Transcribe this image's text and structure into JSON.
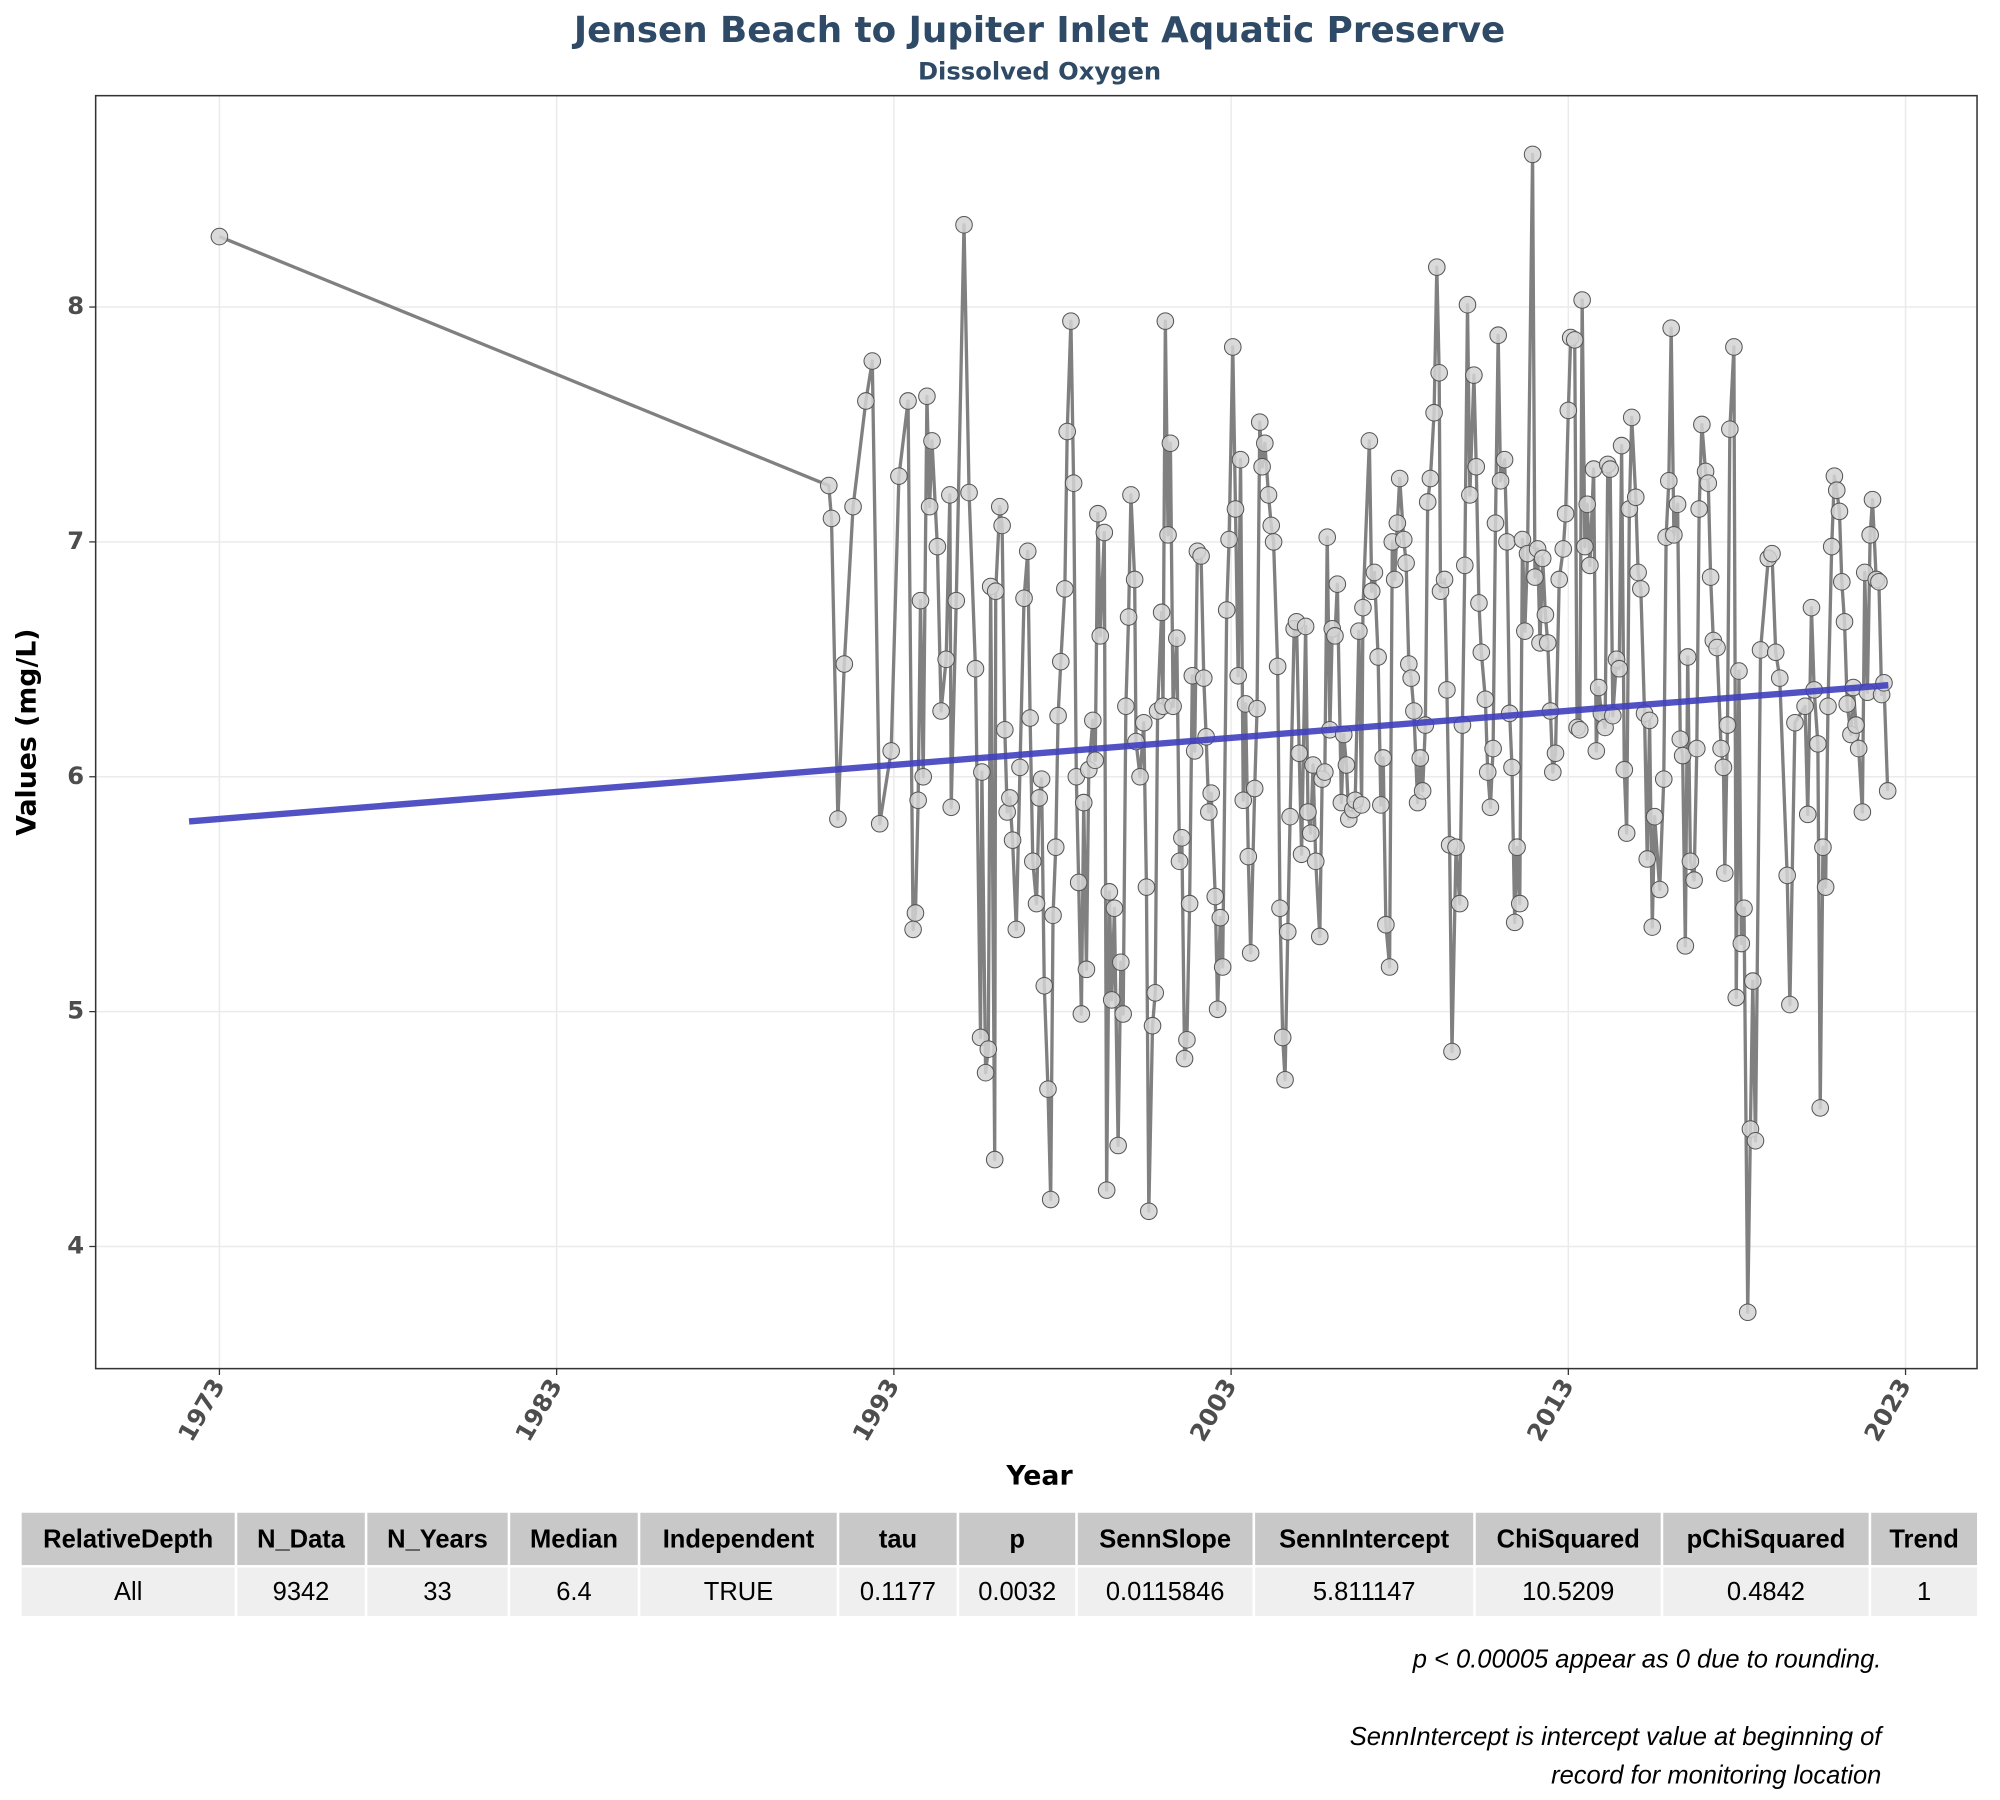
{
  "chart_data": {
    "type": "line",
    "title": "Jensen Beach to Jupiter Inlet Aquatic Preserve",
    "subtitle": "Dissolved Oxygen",
    "x_label": "Year",
    "y_label": "Values (mg/L)",
    "xlim": [
      1969.33,
      2025.12
    ],
    "ylim": [
      3.48,
      8.9
    ],
    "xticks": [
      1973,
      1983,
      1993,
      2003,
      2013,
      2023
    ],
    "yticks": [
      4,
      5,
      6,
      7,
      8
    ],
    "grid": true,
    "series": [
      {
        "color": "#808080",
        "marker_color": "#d3d3d3",
        "x": [
          1973.0,
          1991.07,
          1991.15,
          1991.34,
          1991.53,
          1991.79,
          1992.17,
          1992.36,
          1992.58,
          1992.92,
          1993.15,
          1993.42,
          1993.57,
          1993.64,
          1993.72,
          1993.79,
          1993.87,
          1993.98,
          1994.06,
          1994.13,
          1994.29,
          1994.4,
          1994.55,
          1994.66,
          1994.7,
          1994.85,
          1995.08,
          1995.23,
          1995.42,
          1995.57,
          1995.61,
          1995.72,
          1995.8,
          1995.87,
          1995.99,
          1996.02,
          1996.14,
          1996.21,
          1996.29,
          1996.36,
          1996.44,
          1996.52,
          1996.63,
          1996.74,
          1996.86,
          1996.97,
          1997.04,
          1997.12,
          1997.23,
          1997.31,
          1997.38,
          1997.46,
          1997.57,
          1997.65,
          1997.72,
          1997.8,
          1997.87,
          1997.95,
          1998.07,
          1998.14,
          1998.25,
          1998.33,
          1998.41,
          1998.48,
          1998.56,
          1998.63,
          1998.71,
          1998.78,
          1998.9,
          1998.97,
          1999.05,
          1999.12,
          1999.24,
          1999.31,
          1999.39,
          1999.46,
          1999.54,
          1999.65,
          1999.73,
          1999.8,
          1999.88,
          1999.96,
          2000.03,
          2000.14,
          2000.18,
          2000.3,
          2000.41,
          2000.49,
          2000.56,
          2000.67,
          2000.75,
          2000.82,
          2000.94,
          2000.98,
          2001.05,
          2001.13,
          2001.2,
          2001.28,
          2001.39,
          2001.47,
          2001.54,
          2001.62,
          2001.69,
          2001.77,
          2001.85,
          2001.92,
          2002.0,
          2002.11,
          2002.19,
          2002.26,
          2002.34,
          2002.41,
          2002.53,
          2002.6,
          2002.68,
          2002.75,
          2002.87,
          2002.94,
          2003.05,
          2003.13,
          2003.21,
          2003.28,
          2003.36,
          2003.43,
          2003.51,
          2003.58,
          2003.7,
          2003.77,
          2003.85,
          2003.92,
          2004.0,
          2004.11,
          2004.19,
          2004.26,
          2004.38,
          2004.45,
          2004.53,
          2004.6,
          2004.68,
          2004.75,
          2004.87,
          2004.94,
          2005.02,
          2005.09,
          2005.21,
          2005.28,
          2005.36,
          2005.43,
          2005.51,
          2005.63,
          2005.7,
          2005.78,
          2005.85,
          2005.93,
          2006.0,
          2006.08,
          2006.15,
          2006.27,
          2006.34,
          2006.42,
          2006.49,
          2006.61,
          2006.68,
          2006.79,
          2006.87,
          2006.91,
          2007.1,
          2007.17,
          2007.25,
          2007.36,
          2007.44,
          2007.51,
          2007.59,
          2007.7,
          2007.78,
          2007.85,
          2007.93,
          2008.0,
          2008.12,
          2008.19,
          2008.27,
          2008.34,
          2008.42,
          2008.53,
          2008.61,
          2008.68,
          2008.76,
          2008.83,
          2008.91,
          2009.02,
          2009.1,
          2009.17,
          2009.21,
          2009.33,
          2009.4,
          2009.48,
          2009.55,
          2009.67,
          2009.78,
          2009.86,
          2009.93,
          2010.01,
          2010.08,
          2010.2,
          2010.27,
          2010.35,
          2010.42,
          2010.54,
          2010.61,
          2010.69,
          2010.77,
          2010.84,
          2010.92,
          2010.99,
          2011.11,
          2011.18,
          2011.26,
          2011.33,
          2011.41,
          2011.48,
          2011.56,
          2011.64,
          2011.71,
          2011.79,
          2011.94,
          2012.01,
          2012.09,
          2012.16,
          2012.24,
          2012.32,
          2012.39,
          2012.47,
          2012.54,
          2012.62,
          2012.73,
          2012.85,
          2012.92,
          2013.0,
          2013.07,
          2013.19,
          2013.26,
          2013.34,
          2013.41,
          2013.49,
          2013.56,
          2013.64,
          2013.75,
          2013.83,
          2013.9,
          2013.98,
          2014.09,
          2014.17,
          2014.24,
          2014.32,
          2014.43,
          2014.51,
          2014.58,
          2014.66,
          2014.73,
          2014.81,
          2014.88,
          2015.0,
          2015.07,
          2015.15,
          2015.26,
          2015.34,
          2015.41,
          2015.49,
          2015.56,
          2015.71,
          2015.83,
          2015.9,
          2015.98,
          2016.05,
          2016.13,
          2016.24,
          2016.32,
          2016.39,
          2016.47,
          2016.54,
          2016.62,
          2016.73,
          2016.81,
          2016.88,
          2016.96,
          2017.07,
          2017.15,
          2017.22,
          2017.3,
          2017.41,
          2017.53,
          2017.6,
          2017.64,
          2017.72,
          2017.79,
          2017.91,
          2017.98,
          2018.06,
          2018.13,
          2018.21,
          2018.32,
          2018.4,
          2018.47,
          2018.55,
          2018.7,
          2018.93,
          2019.04,
          2019.15,
          2019.27,
          2019.49,
          2019.57,
          2019.72,
          2020.02,
          2020.1,
          2020.21,
          2020.29,
          2020.4,
          2020.47,
          2020.55,
          2020.63,
          2020.7,
          2020.81,
          2020.89,
          2020.96,
          2021.04,
          2021.11,
          2021.19,
          2021.27,
          2021.38,
          2021.45,
          2021.53,
          2021.61,
          2021.72,
          2021.79,
          2021.87,
          2021.95,
          2022.02,
          2022.13,
          2022.21,
          2022.29,
          2022.36,
          2022.47
        ],
        "values": [
          8.3,
          7.24,
          7.1,
          5.82,
          6.48,
          7.15,
          7.6,
          7.77,
          5.8,
          6.11,
          7.28,
          7.6,
          5.35,
          5.42,
          5.9,
          6.75,
          6.0,
          7.62,
          7.15,
          7.43,
          6.98,
          6.28,
          6.5,
          7.2,
          5.87,
          6.75,
          8.35,
          7.21,
          6.46,
          4.89,
          6.02,
          4.74,
          4.84,
          6.81,
          4.37,
          6.79,
          7.15,
          7.07,
          6.2,
          5.85,
          5.91,
          5.73,
          5.35,
          6.04,
          6.76,
          6.96,
          6.25,
          5.64,
          5.46,
          5.91,
          5.99,
          5.11,
          4.67,
          4.2,
          5.41,
          5.7,
          6.26,
          6.49,
          6.8,
          7.47,
          7.94,
          7.25,
          6.0,
          5.55,
          4.99,
          5.89,
          5.18,
          6.03,
          6.24,
          6.07,
          7.12,
          6.6,
          7.04,
          4.24,
          5.51,
          5.05,
          5.44,
          4.43,
          5.21,
          4.99,
          6.3,
          6.68,
          7.2,
          6.84,
          6.15,
          6.0,
          6.23,
          5.53,
          4.15,
          4.94,
          5.08,
          6.28,
          6.7,
          6.3,
          7.94,
          7.03,
          7.42,
          6.3,
          6.59,
          5.64,
          5.74,
          4.8,
          4.88,
          5.46,
          6.43,
          6.11,
          6.96,
          6.94,
          6.42,
          6.17,
          5.85,
          5.93,
          5.49,
          5.01,
          5.4,
          5.19,
          6.71,
          7.01,
          7.83,
          7.14,
          6.43,
          7.35,
          5.9,
          6.31,
          5.66,
          5.25,
          5.95,
          6.29,
          7.51,
          7.32,
          7.42,
          7.2,
          7.07,
          7.0,
          6.47,
          5.44,
          4.89,
          4.71,
          5.34,
          5.83,
          6.63,
          6.66,
          6.1,
          5.67,
          6.64,
          5.85,
          5.76,
          6.05,
          5.64,
          5.32,
          5.99,
          6.02,
          7.02,
          6.2,
          6.63,
          6.6,
          6.82,
          5.89,
          6.18,
          6.05,
          5.82,
          5.86,
          5.9,
          6.62,
          5.88,
          6.72,
          7.43,
          6.79,
          6.87,
          6.51,
          5.88,
          6.08,
          5.37,
          5.19,
          7.0,
          6.84,
          7.08,
          7.27,
          7.01,
          6.91,
          6.48,
          6.42,
          6.28,
          5.89,
          6.08,
          5.94,
          6.22,
          7.17,
          7.27,
          7.55,
          8.17,
          7.72,
          6.79,
          6.84,
          6.37,
          5.71,
          4.83,
          5.7,
          5.46,
          6.22,
          6.9,
          8.01,
          7.2,
          7.71,
          7.32,
          6.74,
          6.53,
          6.33,
          6.02,
          5.87,
          6.12,
          7.08,
          7.88,
          7.26,
          7.35,
          7.0,
          6.27,
          6.04,
          5.38,
          5.7,
          5.46,
          7.01,
          6.62,
          6.95,
          8.65,
          6.85,
          6.97,
          6.57,
          6.93,
          6.69,
          6.57,
          6.28,
          6.02,
          6.1,
          6.84,
          6.97,
          7.12,
          7.56,
          7.87,
          7.86,
          6.21,
          6.2,
          8.03,
          6.98,
          7.16,
          6.9,
          7.31,
          6.11,
          6.38,
          6.27,
          6.21,
          7.33,
          7.31,
          6.26,
          6.5,
          6.46,
          7.41,
          6.03,
          5.76,
          7.14,
          7.53,
          7.19,
          6.87,
          6.8,
          6.27,
          5.65,
          6.24,
          5.36,
          5.83,
          5.52,
          5.99,
          7.02,
          7.26,
          7.91,
          7.03,
          7.16,
          6.16,
          6.09,
          5.28,
          6.51,
          5.64,
          5.56,
          6.12,
          7.14,
          7.5,
          7.3,
          7.25,
          6.85,
          6.58,
          6.55,
          6.12,
          6.04,
          5.59,
          6.22,
          7.48,
          7.83,
          5.06,
          6.45,
          5.29,
          5.44,
          3.72,
          4.5,
          5.13,
          4.45,
          6.54,
          6.93,
          6.95,
          6.53,
          6.42,
          5.58,
          5.03,
          6.23,
          6.3,
          5.84,
          6.72,
          6.37,
          6.14,
          4.59,
          5.7,
          5.53,
          6.3,
          6.98,
          7.28,
          7.22,
          7.13,
          6.83,
          6.66,
          6.31,
          6.18,
          6.38,
          6.22,
          6.12,
          5.85,
          6.87,
          6.36,
          7.03,
          7.18,
          6.84,
          6.83,
          6.35,
          6.4,
          5.94
        ]
      },
      {
        "color": "#3f3fbf",
        "x": [
          1972.1,
          2022.49
        ],
        "values": [
          5.81,
          6.39
        ]
      }
    ]
  },
  "table": {
    "columns": [
      "RelativeDepth",
      "N_Data",
      "N_Years",
      "Median",
      "Independent",
      "tau",
      "p",
      "SennSlope",
      "SennIntercept",
      "ChiSquared",
      "pChiSquared",
      "Trend"
    ],
    "rows": [
      [
        "All",
        9342,
        33,
        6.4,
        "TRUE",
        0.1177,
        0.0032,
        0.0115846,
        5.811147,
        10.5209,
        0.4842,
        1
      ]
    ]
  },
  "notes": [
    "p < 0.00005 appear as 0 due to rounding.",
    "SennIntercept is intercept value at beginning of",
    "record for monitoring location"
  ]
}
